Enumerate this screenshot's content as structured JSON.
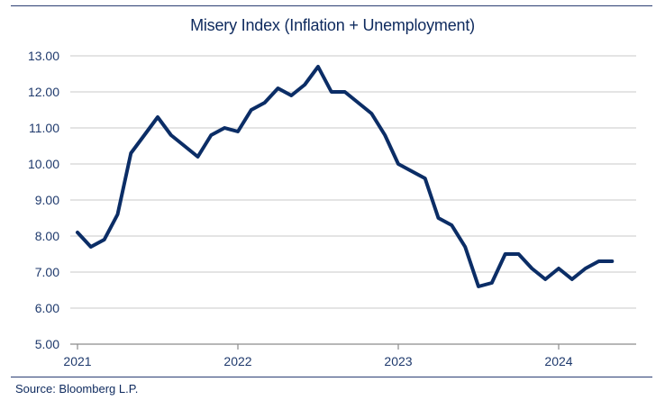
{
  "chart_data": {
    "type": "line",
    "title": "Misery Index (Inflation + Unemployment)",
    "source": "Source: Bloomberg L.P.",
    "xlabel": "",
    "ylabel": "",
    "ylim": [
      5.0,
      13.0
    ],
    "yticks": [
      "5.00",
      "6.00",
      "7.00",
      "8.00",
      "9.00",
      "10.00",
      "11.00",
      "12.00",
      "13.00"
    ],
    "xticks": [
      "2021",
      "2022",
      "2023",
      "2024"
    ],
    "grid": true,
    "line_color": "#0b2d66",
    "grid_color": "#d3d3d3",
    "series": [
      {
        "x": [
          "2021-01",
          "2021-02",
          "2021-03",
          "2021-04",
          "2021-05",
          "2021-06",
          "2021-07",
          "2021-08",
          "2021-09",
          "2021-10",
          "2021-11",
          "2021-12",
          "2022-01",
          "2022-02",
          "2022-03",
          "2022-04",
          "2022-05",
          "2022-06",
          "2022-07",
          "2022-08",
          "2022-09",
          "2022-10",
          "2022-11",
          "2022-12",
          "2023-01",
          "2023-02",
          "2023-03",
          "2023-04",
          "2023-05",
          "2023-06",
          "2023-07",
          "2023-08",
          "2023-09",
          "2023-10",
          "2023-11",
          "2023-12",
          "2024-01",
          "2024-02",
          "2024-03",
          "2024-04",
          "2024-05"
        ],
        "values": [
          8.1,
          7.7,
          7.9,
          8.6,
          10.3,
          10.8,
          11.3,
          10.8,
          10.5,
          10.2,
          10.8,
          11.0,
          10.9,
          11.5,
          11.7,
          12.1,
          11.9,
          12.2,
          12.7,
          12.0,
          12.0,
          11.7,
          11.4,
          10.8,
          10.0,
          9.8,
          9.6,
          8.5,
          8.3,
          7.7,
          6.6,
          6.7,
          7.5,
          7.5,
          7.1,
          6.8,
          7.1,
          6.8,
          7.1,
          7.3,
          7.3
        ]
      }
    ]
  }
}
